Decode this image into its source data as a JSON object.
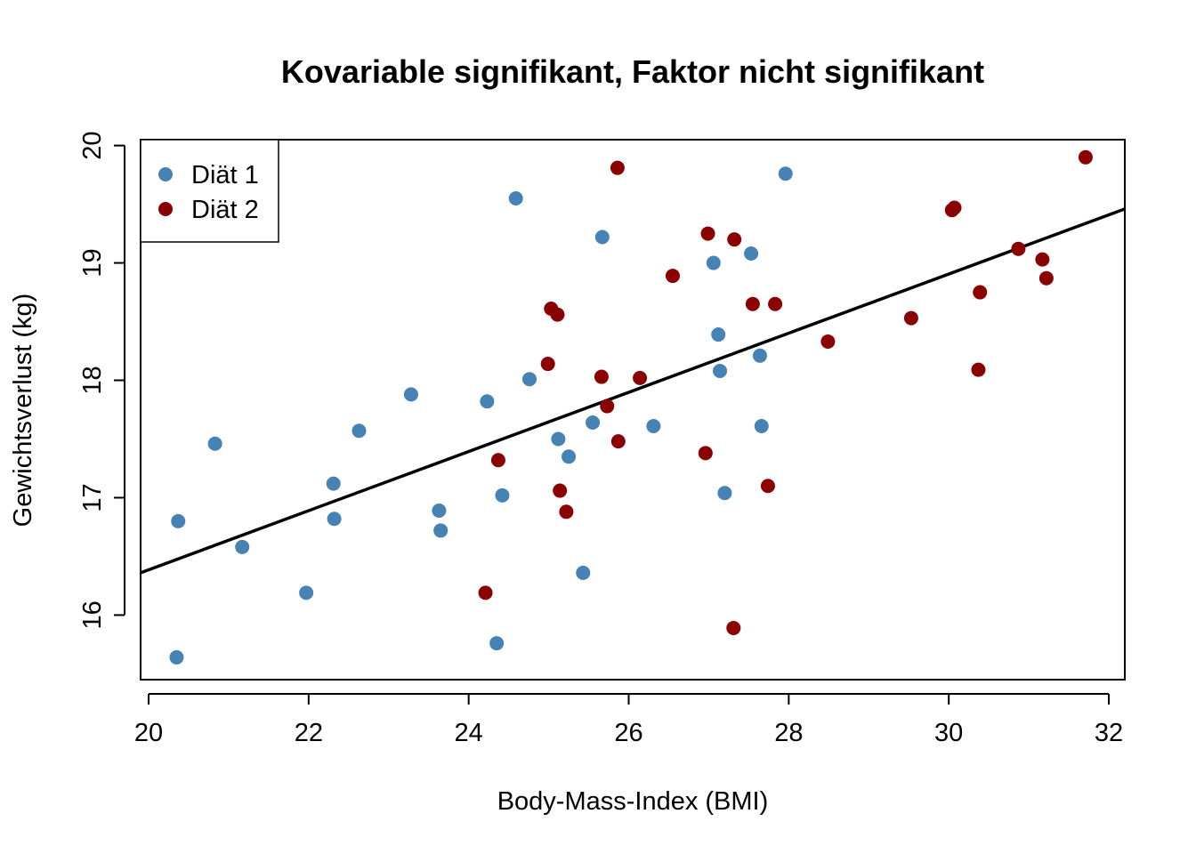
{
  "chart_data": {
    "type": "scatter",
    "title": "Kovariable signifikant, Faktor nicht signifikant",
    "xlabel": "Body-Mass-Index (BMI)",
    "ylabel": "Gewichtsverlust (kg)",
    "xlim": [
      19.9,
      32.2
    ],
    "ylim": [
      15.45,
      20.05
    ],
    "x_ticks": [
      20,
      22,
      24,
      26,
      28,
      30,
      32
    ],
    "y_ticks": [
      16,
      17,
      18,
      19,
      20
    ],
    "legend_position": "top-left",
    "grid": false,
    "series": [
      {
        "name": "Diät 1",
        "color": "#4682B4",
        "x": [
          20.37,
          20.35,
          20.83,
          21.17,
          21.97,
          22.31,
          22.32,
          22.63,
          23.28,
          23.63,
          23.65,
          24.23,
          24.35,
          24.42,
          24.59,
          24.76,
          25.12,
          25.25,
          25.43,
          25.55,
          25.67,
          26.31,
          27.06,
          27.12,
          27.14,
          27.2,
          27.53,
          27.64,
          27.66,
          27.96
        ],
        "y": [
          16.8,
          15.64,
          17.46,
          16.58,
          16.19,
          17.12,
          16.82,
          17.57,
          17.88,
          16.89,
          16.72,
          17.82,
          15.76,
          17.02,
          19.55,
          18.01,
          17.5,
          17.35,
          16.36,
          17.64,
          19.22,
          17.61,
          19.0,
          18.39,
          18.08,
          17.04,
          19.08,
          18.21,
          17.61,
          19.76
        ]
      },
      {
        "name": "Diät 2",
        "color": "#8B0000",
        "x": [
          24.21,
          24.37,
          24.99,
          25.03,
          25.11,
          25.14,
          25.22,
          25.66,
          25.73,
          25.86,
          25.87,
          26.14,
          26.55,
          26.96,
          26.99,
          27.31,
          27.32,
          27.55,
          27.74,
          27.83,
          28.49,
          29.53,
          30.04,
          30.07,
          30.37,
          30.39,
          30.87,
          31.17,
          31.22,
          31.71
        ],
        "y": [
          16.19,
          17.32,
          18.14,
          18.61,
          18.56,
          17.06,
          16.88,
          18.03,
          17.78,
          19.81,
          17.48,
          18.02,
          18.89,
          17.38,
          19.25,
          15.89,
          19.2,
          18.65,
          17.1,
          18.65,
          18.33,
          18.53,
          19.45,
          19.47,
          18.09,
          18.75,
          19.12,
          19.03,
          18.87,
          19.9
        ]
      }
    ],
    "regression_line": {
      "x": [
        19.9,
        32.2
      ],
      "y": [
        16.36,
        19.46
      ]
    }
  }
}
